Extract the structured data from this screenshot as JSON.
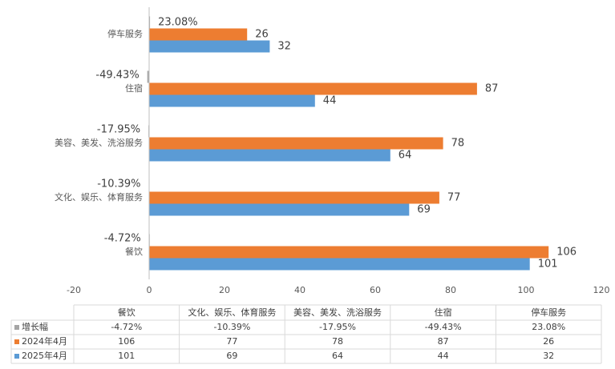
{
  "chart_data": {
    "type": "bar",
    "orientation": "horizontal",
    "categories": [
      "餐饮",
      "文化、娱乐、体育服务",
      "美容、美发、洗浴服务",
      "住宿",
      "停车服务"
    ],
    "series": [
      {
        "name": "增长幅",
        "color": "#a5a5a5",
        "values": [
          -0.0472,
          -0.1039,
          -0.1795,
          -0.4943,
          0.2308
        ],
        "value_labels": [
          "-4.72%",
          "-10.39%",
          "-17.95%",
          "-49.43%",
          "23.08%"
        ]
      },
      {
        "name": "2024年4月",
        "color": "#ed7d31",
        "values": [
          106,
          77,
          78,
          87,
          26
        ]
      },
      {
        "name": "2025年4月",
        "color": "#5b9bd5",
        "values": [
          101,
          69,
          64,
          44,
          32
        ]
      }
    ],
    "xlim": [
      -20,
      120
    ],
    "xticks": [
      -20,
      0,
      20,
      40,
      60,
      80,
      100,
      120
    ],
    "grid": false
  }
}
